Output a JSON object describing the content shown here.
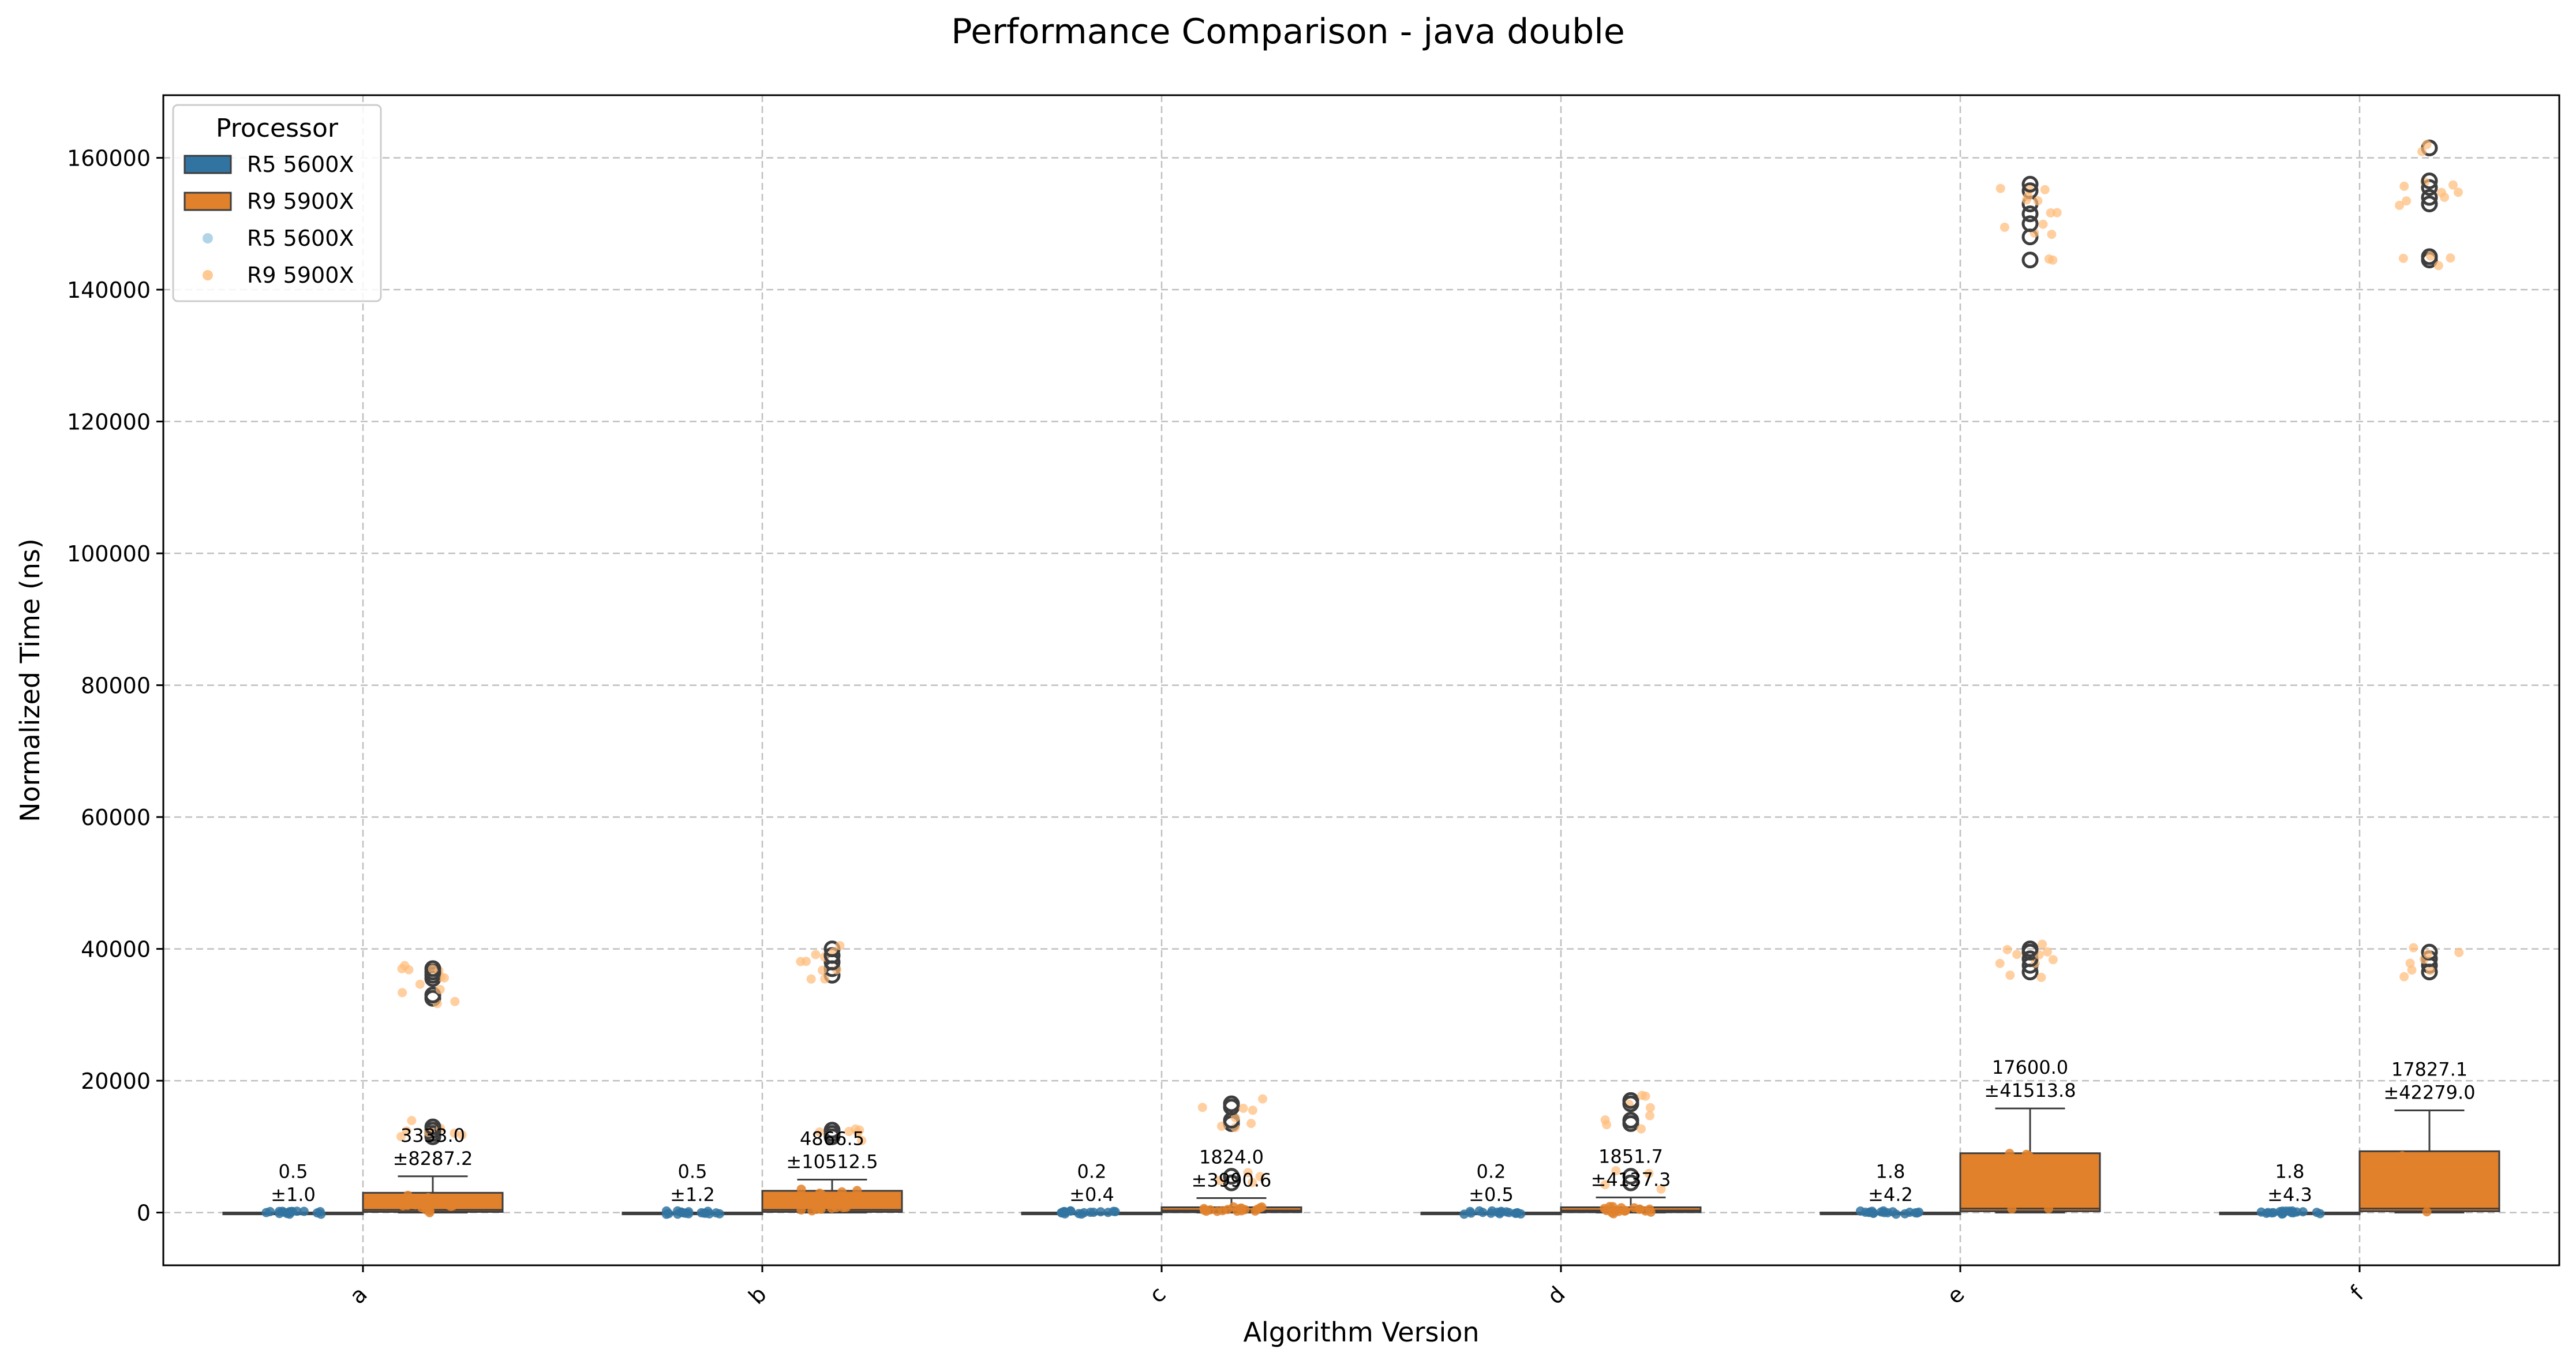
{
  "chart_data": {
    "type": "box",
    "title": "Performance Comparison - java double",
    "xlabel": "Algorithm Version",
    "ylabel": "Normalized Time (ns)",
    "categories": [
      "a",
      "b",
      "c",
      "d",
      "e",
      "f"
    ],
    "ylim": [
      -8000,
      169500
    ],
    "yticks": [
      0,
      20000,
      40000,
      60000,
      80000,
      100000,
      120000,
      140000,
      160000
    ],
    "grid": true,
    "legend": {
      "title": "Processor",
      "placement": "top-left",
      "entries": [
        {
          "label": "R5 5600X",
          "kind": "box"
        },
        {
          "label": "R9 5900X",
          "kind": "box"
        },
        {
          "label": "R5 5600X",
          "kind": "point"
        },
        {
          "label": "R9 5900X",
          "kind": "point"
        }
      ]
    },
    "series": [
      {
        "name": "R5 5600X",
        "color": "#3274a1",
        "point_color": "#9ecae1",
        "boxes": [
          {
            "q1": 0,
            "median": 0.3,
            "q3": 1,
            "whisker_low": 0,
            "whisker_high": 2,
            "mean_label": "0.5",
            "std_label": "±1.0",
            "outliers": []
          },
          {
            "q1": 0,
            "median": 0.3,
            "q3": 1,
            "whisker_low": 0,
            "whisker_high": 2,
            "mean_label": "0.5",
            "std_label": "±1.2",
            "outliers": []
          },
          {
            "q1": 0,
            "median": 0.1,
            "q3": 0.4,
            "whisker_low": 0,
            "whisker_high": 1,
            "mean_label": "0.2",
            "std_label": "±0.4",
            "outliers": []
          },
          {
            "q1": 0,
            "median": 0.1,
            "q3": 0.4,
            "whisker_low": 0,
            "whisker_high": 1,
            "mean_label": "0.2",
            "std_label": "±0.5",
            "outliers": []
          },
          {
            "q1": 0,
            "median": 1,
            "q3": 3,
            "whisker_low": 0,
            "whisker_high": 6,
            "mean_label": "1.8",
            "std_label": "±4.2",
            "outliers": []
          },
          {
            "q1": 0,
            "median": 1,
            "q3": 3,
            "whisker_low": 0,
            "whisker_high": 6,
            "mean_label": "1.8",
            "std_label": "±4.3",
            "outliers": []
          }
        ]
      },
      {
        "name": "R9 5900X",
        "color": "#e1812c",
        "point_color": "#ffbb78",
        "boxes": [
          {
            "q1": 100,
            "median": 400,
            "q3": 3000,
            "whisker_low": 0,
            "whisker_high": 5500,
            "mean_label": "3333.0",
            "std_label": "±8287.2",
            "outliers": [
              11500,
              12000,
              12500,
              13000,
              32500,
              33000,
              35500,
              36000,
              36500,
              37000
            ]
          },
          {
            "q1": 100,
            "median": 400,
            "q3": 3300,
            "whisker_low": 0,
            "whisker_high": 5000,
            "mean_label": "4866.5",
            "std_label": "±10512.5",
            "outliers": [
              11500,
              12000,
              12500,
              36000,
              37000,
              38000,
              39000,
              40000
            ]
          },
          {
            "q1": 50,
            "median": 300,
            "q3": 800,
            "whisker_low": 0,
            "whisker_high": 2200,
            "mean_label": "1824.0",
            "std_label": "±3990.6",
            "outliers": [
              4500,
              5500,
              13500,
              14000,
              16000,
              16500
            ]
          },
          {
            "q1": 50,
            "median": 300,
            "q3": 800,
            "whisker_low": 0,
            "whisker_high": 2300,
            "mean_label": "1851.7",
            "std_label": "±4137.3",
            "outliers": [
              4500,
              5500,
              13500,
              14000,
              16500,
              17000
            ]
          },
          {
            "q1": 200,
            "median": 600,
            "q3": 9000,
            "whisker_low": 0,
            "whisker_high": 15800,
            "mean_label": "17600.0",
            "std_label": "±41513.8",
            "outliers": [
              36500,
              37500,
              38500,
              39500,
              40000,
              144500,
              148000,
              150000,
              151500,
              153000,
              155000,
              156000
            ]
          },
          {
            "q1": 200,
            "median": 600,
            "q3": 9300,
            "whisker_low": 0,
            "whisker_high": 15500,
            "mean_label": "17827.1",
            "std_label": "±42279.0",
            "outliers": [
              36500,
              37500,
              38500,
              39500,
              144500,
              145000,
              153000,
              154000,
              155500,
              156500,
              161500
            ]
          }
        ]
      }
    ]
  }
}
